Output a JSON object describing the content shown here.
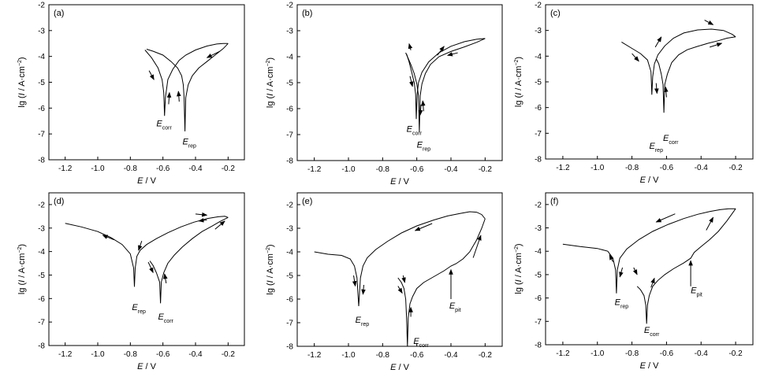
{
  "chart_data": [
    {
      "type": "line",
      "panel_label": "(a)",
      "xlabel_var": "E",
      "xlabel_unit": "V",
      "ylabel_var": "I",
      "ylabel_prefix": "lg (",
      "ylabel_unit": "A·cm",
      "ylabel_exp": "−2",
      "xlim": [
        -1.3,
        -0.1
      ],
      "ylim": [
        -8,
        -2
      ],
      "xticks": [
        "-1.2",
        "-1.0",
        "-0.8",
        "-0.6",
        "-0.4",
        "-0.2"
      ],
      "yticks": [
        "-2",
        "-3",
        "-4",
        "-5",
        "-6",
        "-7",
        "-8"
      ],
      "curves": [
        {
          "x": [
            -0.71,
            -0.67,
            -0.63,
            -0.605,
            -0.595,
            -0.59,
            -0.585,
            -0.57,
            -0.54,
            -0.5,
            -0.46,
            -0.4,
            -0.33,
            -0.27,
            -0.23,
            -0.2
          ],
          "y": [
            -3.75,
            -4.05,
            -4.45,
            -4.9,
            -5.4,
            -6.3,
            -5.6,
            -4.9,
            -4.5,
            -4.15,
            -3.95,
            -3.75,
            -3.6,
            -3.52,
            -3.5,
            -3.5
          ]
        },
        {
          "x": [
            -0.2,
            -0.23,
            -0.28,
            -0.33,
            -0.38,
            -0.42,
            -0.445,
            -0.46,
            -0.465,
            -0.47,
            -0.475,
            -0.485,
            -0.51,
            -0.55,
            -0.6,
            -0.66,
            -0.7
          ],
          "y": [
            -3.5,
            -3.7,
            -3.95,
            -4.2,
            -4.45,
            -4.75,
            -5.1,
            -5.6,
            -6.9,
            -5.6,
            -5.1,
            -4.75,
            -4.45,
            -4.2,
            -3.95,
            -3.8,
            -3.72
          ]
        }
      ],
      "annotations": [
        {
          "main": "E",
          "sub": "corr",
          "x": -0.64,
          "y": -6.7
        },
        {
          "main": "E",
          "sub": "rep",
          "x": -0.48,
          "y": -7.4
        }
      ],
      "arrows": [
        {
          "x1": -0.685,
          "y1": -4.55,
          "x2": -0.655,
          "y2": -4.9
        },
        {
          "x1": -0.565,
          "y1": -5.85,
          "x2": -0.56,
          "y2": -5.4
        },
        {
          "x1": -0.5,
          "y1": -5.75,
          "x2": -0.505,
          "y2": -5.35
        },
        {
          "x1": -0.25,
          "y1": -3.8,
          "x2": -0.33,
          "y2": -4.05
        }
      ]
    },
    {
      "type": "line",
      "panel_label": "(b)",
      "xlabel_var": "E",
      "xlabel_unit": "V",
      "ylabel_var": "I",
      "ylabel_prefix": "lg (",
      "ylabel_unit": "A·cm",
      "ylabel_exp": "−2",
      "xlim": [
        -1.3,
        -0.1
      ],
      "ylim": [
        -8,
        -2
      ],
      "xticks": [
        "-1.2",
        "-1.0",
        "-0.8",
        "-0.6",
        "-0.4",
        "-0.2"
      ],
      "yticks": [
        "-2",
        "-3",
        "-4",
        "-5",
        "-6",
        "-7",
        "-8"
      ],
      "curves": [
        {
          "x": [
            -0.66,
            -0.645,
            -0.63,
            -0.615,
            -0.607,
            -0.603,
            -0.598,
            -0.59,
            -0.57,
            -0.53,
            -0.47,
            -0.4,
            -0.32,
            -0.25,
            -0.2
          ],
          "y": [
            -3.9,
            -4.2,
            -4.6,
            -5.0,
            -5.45,
            -6.4,
            -5.45,
            -5.0,
            -4.6,
            -4.2,
            -3.85,
            -3.6,
            -3.42,
            -3.33,
            -3.3
          ]
        },
        {
          "x": [
            -0.2,
            -0.25,
            -0.32,
            -0.4,
            -0.47,
            -0.52,
            -0.55,
            -0.57,
            -0.58,
            -0.585,
            -0.59,
            -0.6,
            -0.615,
            -0.635,
            -0.655,
            -0.665
          ],
          "y": [
            -3.3,
            -3.45,
            -3.62,
            -3.8,
            -4.0,
            -4.3,
            -4.65,
            -5.05,
            -5.5,
            -6.9,
            -5.5,
            -5.05,
            -4.65,
            -4.3,
            -4.0,
            -3.85
          ]
        }
      ],
      "annotations": [
        {
          "main": "E",
          "sub": "corr",
          "x": -0.66,
          "y": -6.9
        },
        {
          "main": "E",
          "sub": "rep",
          "x": -0.6,
          "y": -7.5
        }
      ],
      "arrows": [
        {
          "x1": -0.64,
          "y1": -4.75,
          "x2": -0.625,
          "y2": -5.15
        },
        {
          "x1": -0.635,
          "y1": -3.75,
          "x2": -0.645,
          "y2": -3.5
        },
        {
          "x1": -0.575,
          "y1": -5.85,
          "x2": -0.58,
          "y2": -6.25
        },
        {
          "x1": -0.56,
          "y1": -6.1,
          "x2": -0.565,
          "y2": -5.7
        },
        {
          "x1": -0.48,
          "y1": -3.95,
          "x2": -0.44,
          "y2": -3.6
        },
        {
          "x1": -0.36,
          "y1": -3.85,
          "x2": -0.42,
          "y2": -3.95
        }
      ]
    },
    {
      "type": "line",
      "panel_label": "(c)",
      "xlabel_var": "E",
      "xlabel_unit": "V",
      "ylabel_var": "I",
      "ylabel_prefix": "lg (",
      "ylabel_unit": "A·cm",
      "ylabel_exp": "−2",
      "xlim": [
        -1.3,
        -0.1
      ],
      "ylim": [
        -8,
        -2
      ],
      "xticks": [
        "-1.2",
        "-1.0",
        "-0.8",
        "-0.6",
        "-0.4",
        "-0.2"
      ],
      "yticks": [
        "-2",
        "-3",
        "-4",
        "-5",
        "-6",
        "-7",
        "-8"
      ],
      "curves": [
        {
          "x": [
            -0.86,
            -0.8,
            -0.75,
            -0.71,
            -0.69,
            -0.685,
            -0.68,
            -0.67,
            -0.65,
            -0.61,
            -0.56,
            -0.5,
            -0.42,
            -0.34,
            -0.27,
            -0.22,
            -0.2
          ],
          "y": [
            -3.45,
            -3.7,
            -3.9,
            -4.15,
            -4.6,
            -5.5,
            -4.8,
            -4.3,
            -3.95,
            -3.6,
            -3.3,
            -3.1,
            -2.98,
            -2.95,
            -3.0,
            -3.15,
            -3.25
          ]
        },
        {
          "x": [
            -0.2,
            -0.25,
            -0.3,
            -0.36,
            -0.42,
            -0.48,
            -0.53,
            -0.57,
            -0.595,
            -0.61,
            -0.615,
            -0.62,
            -0.63,
            -0.645,
            -0.66
          ],
          "y": [
            -3.25,
            -3.3,
            -3.4,
            -3.5,
            -3.62,
            -3.75,
            -3.95,
            -4.25,
            -4.7,
            -5.1,
            -6.2,
            -5.1,
            -4.7,
            -4.3,
            -4.1
          ]
        }
      ],
      "annotations": [
        {
          "main": "E",
          "sub": "rep",
          "x": -0.7,
          "y": -7.6
        },
        {
          "main": "E",
          "sub": "corr",
          "x": -0.62,
          "y": -7.3
        }
      ],
      "arrows": [
        {
          "x1": -0.8,
          "y1": -3.9,
          "x2": -0.76,
          "y2": -4.2
        },
        {
          "x1": -0.665,
          "y1": -3.65,
          "x2": -0.63,
          "y2": -3.25
        },
        {
          "x1": -0.66,
          "y1": -5.05,
          "x2": -0.655,
          "y2": -5.45
        },
        {
          "x1": -0.6,
          "y1": -5.6,
          "x2": -0.605,
          "y2": -5.2
        },
        {
          "x1": -0.38,
          "y1": -2.6,
          "x2": -0.33,
          "y2": -2.78
        },
        {
          "x1": -0.35,
          "y1": -3.65,
          "x2": -0.28,
          "y2": -3.5
        }
      ]
    },
    {
      "type": "line",
      "panel_label": "(d)",
      "xlabel_var": "E",
      "xlabel_unit": "V",
      "ylabel_var": "I",
      "ylabel_prefix": "lg (",
      "ylabel_unit": "A·cm",
      "ylabel_exp": "−2",
      "xlim": [
        -1.3,
        -0.1
      ],
      "ylim": [
        -8,
        -1.5
      ],
      "xticks": [
        "-1.2",
        "-1.0",
        "-0.8",
        "-0.6",
        "-0.4",
        "-0.2"
      ],
      "yticks": [
        "-2",
        "-3",
        "-4",
        "-5",
        "-6",
        "-7",
        "-8"
      ],
      "curves": [
        {
          "x": [
            -1.2,
            -1.1,
            -1.0,
            -0.92,
            -0.85,
            -0.8,
            -0.78,
            -0.775,
            -0.77,
            -0.76,
            -0.74,
            -0.7,
            -0.64,
            -0.57,
            -0.49,
            -0.41,
            -0.33,
            -0.26,
            -0.22,
            -0.2
          ],
          "y": [
            -2.8,
            -2.95,
            -3.15,
            -3.4,
            -3.7,
            -4.1,
            -4.7,
            -5.5,
            -4.7,
            -4.2,
            -3.95,
            -3.7,
            -3.45,
            -3.2,
            -2.95,
            -2.75,
            -2.6,
            -2.52,
            -2.5,
            -2.55
          ]
        },
        {
          "x": [
            -0.2,
            -0.25,
            -0.3,
            -0.36,
            -0.42,
            -0.48,
            -0.53,
            -0.57,
            -0.595,
            -0.61,
            -0.615,
            -0.62,
            -0.64,
            -0.66,
            -0.68
          ],
          "y": [
            -2.55,
            -2.72,
            -2.92,
            -3.15,
            -3.45,
            -3.8,
            -4.15,
            -4.5,
            -4.9,
            -5.3,
            -6.2,
            -5.3,
            -4.9,
            -4.6,
            -4.4
          ]
        }
      ],
      "annotations": [
        {
          "main": "E",
          "sub": "rep",
          "x": -0.79,
          "y": -6.5
        },
        {
          "main": "E",
          "sub": "corr",
          "x": -0.63,
          "y": -6.9
        }
      ],
      "arrows": [
        {
          "x1": -0.9,
          "y1": -3.5,
          "x2": -0.97,
          "y2": -3.3
        },
        {
          "x1": -0.73,
          "y1": -3.55,
          "x2": -0.75,
          "y2": -3.95
        },
        {
          "x1": -0.69,
          "y1": -4.45,
          "x2": -0.66,
          "y2": -4.9
        },
        {
          "x1": -0.58,
          "y1": -5.35,
          "x2": -0.59,
          "y2": -4.95
        },
        {
          "x1": -0.4,
          "y1": -2.4,
          "x2": -0.33,
          "y2": -2.45
        },
        {
          "x1": -0.33,
          "y1": -2.65,
          "x2": -0.38,
          "y2": -2.7
        },
        {
          "x1": -0.28,
          "y1": -3.05,
          "x2": -0.22,
          "y2": -2.7
        }
      ]
    },
    {
      "type": "line",
      "panel_label": "(e)",
      "xlabel_var": "E",
      "xlabel_unit": "V",
      "ylabel_var": "I",
      "ylabel_prefix": "lg (",
      "ylabel_unit": "A·cm",
      "ylabel_exp": "−2",
      "xlim": [
        -1.3,
        -0.1
      ],
      "ylim": [
        -8,
        -1.5
      ],
      "xticks": [
        "-1.2",
        "-1.0",
        "-0.8",
        "-0.6",
        "-0.4",
        "-0.2"
      ],
      "yticks": [
        "-2",
        "-3",
        "-4",
        "-5",
        "-6",
        "-7",
        "-8"
      ],
      "curves": [
        {
          "x": [
            -1.2,
            -1.12,
            -1.04,
            -0.99,
            -0.965,
            -0.95,
            -0.94,
            -0.93,
            -0.915,
            -0.89,
            -0.84,
            -0.77,
            -0.69,
            -0.6,
            -0.5,
            -0.42,
            -0.35,
            -0.29,
            -0.25,
            -0.22,
            -0.2
          ],
          "y": [
            -4.0,
            -4.1,
            -4.15,
            -4.3,
            -4.6,
            -5.1,
            -6.3,
            -5.1,
            -4.6,
            -4.25,
            -3.9,
            -3.55,
            -3.2,
            -2.9,
            -2.65,
            -2.48,
            -2.38,
            -2.3,
            -2.32,
            -2.42,
            -2.6
          ]
        },
        {
          "x": [
            -0.2,
            -0.22,
            -0.25,
            -0.29,
            -0.33,
            -0.37,
            -0.4,
            -0.44,
            -0.5,
            -0.56,
            -0.6,
            -0.625,
            -0.64,
            -0.65,
            -0.655,
            -0.66,
            -0.665,
            -0.675,
            -0.69,
            -0.71
          ],
          "y": [
            -2.6,
            -3.0,
            -3.5,
            -4.0,
            -4.3,
            -4.5,
            -4.6,
            -4.8,
            -5.05,
            -5.3,
            -5.55,
            -5.9,
            -6.2,
            -6.8,
            -8.0,
            -6.8,
            -6.0,
            -5.55,
            -5.3,
            -5.1
          ]
        }
      ],
      "annotations": [
        {
          "main": "E",
          "sub": "rep",
          "x": -0.96,
          "y": -7.0
        },
        {
          "main": "E",
          "sub": "corr",
          "x": -0.62,
          "y": -7.9
        },
        {
          "main": "E",
          "sub": "pit",
          "x": -0.41,
          "y": -6.4
        }
      ],
      "arrows": [
        {
          "x1": -0.97,
          "y1": -5.0,
          "x2": -0.96,
          "y2": -5.45
        },
        {
          "x1": -0.91,
          "y1": -5.4,
          "x2": -0.915,
          "y2": -5.8
        },
        {
          "x1": -0.71,
          "y1": -5.45,
          "x2": -0.685,
          "y2": -5.75
        },
        {
          "x1": -0.635,
          "y1": -6.75,
          "x2": -0.635,
          "y2": -6.35
        },
        {
          "x1": -0.68,
          "y1": -5.0,
          "x2": -0.67,
          "y2": -5.3
        },
        {
          "x1": -0.51,
          "y1": -2.8,
          "x2": -0.61,
          "y2": -3.1
        },
        {
          "x1": -0.27,
          "y1": -4.25,
          "x2": -0.225,
          "y2": -3.3
        },
        {
          "x1": -0.4,
          "y1": -6.0,
          "x2": -0.4,
          "y2": -4.75
        }
      ]
    },
    {
      "type": "line",
      "panel_label": "(f)",
      "xlabel_var": "E",
      "xlabel_unit": "V",
      "ylabel_var": "I",
      "ylabel_prefix": "lg (",
      "ylabel_unit": "A·cm",
      "ylabel_exp": "−2",
      "xlim": [
        -1.3,
        -0.1
      ],
      "ylim": [
        -8,
        -1.5
      ],
      "xticks": [
        "-1.2",
        "-1.0",
        "-0.8",
        "-0.6",
        "-0.4",
        "-0.2"
      ],
      "yticks": [
        "-2",
        "-3",
        "-4",
        "-5",
        "-6",
        "-7",
        "-8"
      ],
      "curves": [
        {
          "x": [
            -1.2,
            -1.1,
            -1.0,
            -0.94,
            -0.91,
            -0.895,
            -0.89,
            -0.885,
            -0.87,
            -0.83,
            -0.76,
            -0.68,
            -0.59,
            -0.5,
            -0.42,
            -0.35,
            -0.29,
            -0.24,
            -0.2
          ],
          "y": [
            -3.7,
            -3.8,
            -3.88,
            -4.0,
            -4.3,
            -4.8,
            -5.8,
            -4.8,
            -4.3,
            -3.9,
            -3.5,
            -3.15,
            -2.85,
            -2.6,
            -2.42,
            -2.3,
            -2.22,
            -2.18,
            -2.18
          ]
        },
        {
          "x": [
            -0.2,
            -0.25,
            -0.3,
            -0.35,
            -0.4,
            -0.44,
            -0.46,
            -0.5,
            -0.56,
            -0.61,
            -0.65,
            -0.68,
            -0.7,
            -0.71,
            -0.715,
            -0.72,
            -0.73,
            -0.75,
            -0.77
          ],
          "y": [
            -2.18,
            -2.7,
            -3.15,
            -3.5,
            -3.8,
            -4.05,
            -4.3,
            -4.5,
            -4.75,
            -5.0,
            -5.25,
            -5.5,
            -5.9,
            -6.3,
            -7.1,
            -6.3,
            -5.9,
            -5.65,
            -5.5
          ]
        }
      ],
      "annotations": [
        {
          "main": "E",
          "sub": "rep",
          "x": -0.9,
          "y": -6.3
        },
        {
          "main": "E",
          "sub": "corr",
          "x": -0.73,
          "y": -7.5
        },
        {
          "main": "E",
          "sub": "pit",
          "x": -0.46,
          "y": -5.8
        }
      ],
      "arrows": [
        {
          "x1": -0.91,
          "y1": -4.45,
          "x2": -0.93,
          "y2": -4.15
        },
        {
          "x1": -0.855,
          "y1": -4.7,
          "x2": -0.87,
          "y2": -5.1
        },
        {
          "x1": -0.79,
          "y1": -4.7,
          "x2": -0.77,
          "y2": -5.0
        },
        {
          "x1": -0.69,
          "y1": -5.55,
          "x2": -0.67,
          "y2": -5.15
        },
        {
          "x1": -0.55,
          "y1": -2.4,
          "x2": -0.66,
          "y2": -2.75
        },
        {
          "x1": -0.37,
          "y1": -3.1,
          "x2": -0.33,
          "y2": -2.55
        },
        {
          "x1": -0.46,
          "y1": -5.5,
          "x2": -0.46,
          "y2": -4.4
        }
      ]
    }
  ]
}
